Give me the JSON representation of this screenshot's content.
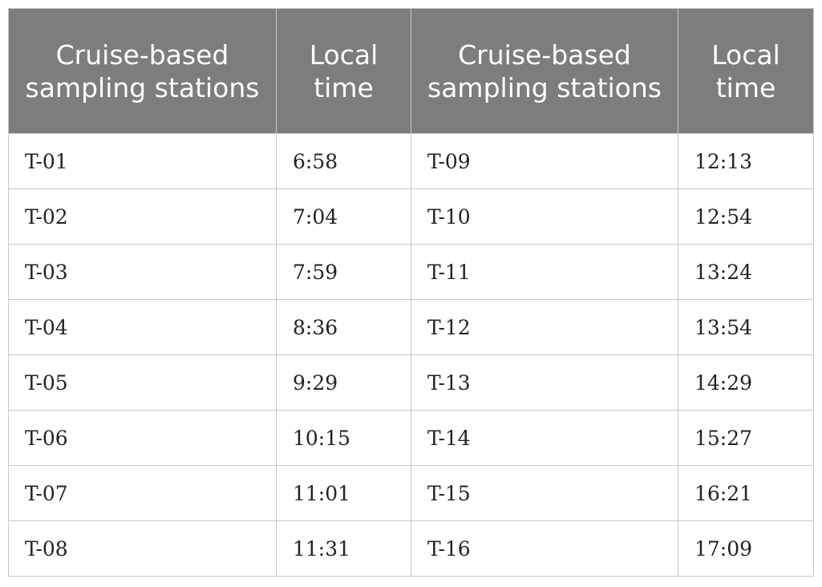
{
  "table": {
    "headers": [
      "Cruise-based sampling stations",
      "Local time",
      "Cruise-based sampling stations",
      "Local time"
    ],
    "rows": [
      [
        "T-01",
        "6:58",
        "T-09",
        "12:13"
      ],
      [
        "T-02",
        "7:04",
        "T-10",
        "12:54"
      ],
      [
        "T-03",
        "7:59",
        "T-11",
        "13:24"
      ],
      [
        "T-04",
        "8:36",
        "T-12",
        "13:54"
      ],
      [
        "T-05",
        "9:29",
        "T-13",
        "14:29"
      ],
      [
        "T-06",
        "10:15",
        "T-14",
        "15:27"
      ],
      [
        "T-07",
        "11:01",
        "T-15",
        "16:21"
      ],
      [
        "T-08",
        "11:31",
        "T-16",
        "17:09"
      ]
    ]
  }
}
